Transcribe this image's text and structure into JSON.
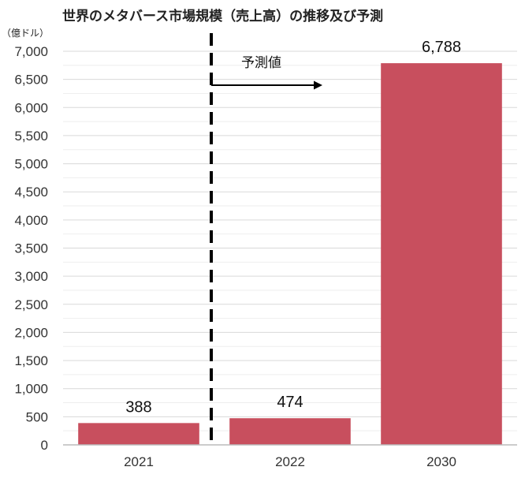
{
  "chart_data": {
    "type": "bar",
    "title": "世界のメタバース市場規模（売上高）の推移及び予測",
    "unit_label": "（億ドル）",
    "categories": [
      "2021",
      "2022",
      "2030"
    ],
    "values": [
      388,
      474,
      6788
    ],
    "data_labels": [
      "388",
      "474",
      "6,788"
    ],
    "ylim": [
      0,
      7000
    ],
    "yticks": [
      0,
      500,
      1000,
      1500,
      2000,
      2500,
      3000,
      3500,
      4000,
      4500,
      5000,
      5500,
      6000,
      6500,
      7000
    ],
    "ytick_labels": [
      "0",
      "500",
      "1,000",
      "1,500",
      "2,000",
      "2,500",
      "3,000",
      "3,500",
      "4,000",
      "4,500",
      "5,000",
      "5,500",
      "6,000",
      "6,500",
      "7,000"
    ],
    "grid": true,
    "bar_color": "#c84f5e",
    "annotation": {
      "text": "予測値",
      "style": "dashed vertical divider between 2021 and 2022 with right-pointing arrow"
    }
  }
}
